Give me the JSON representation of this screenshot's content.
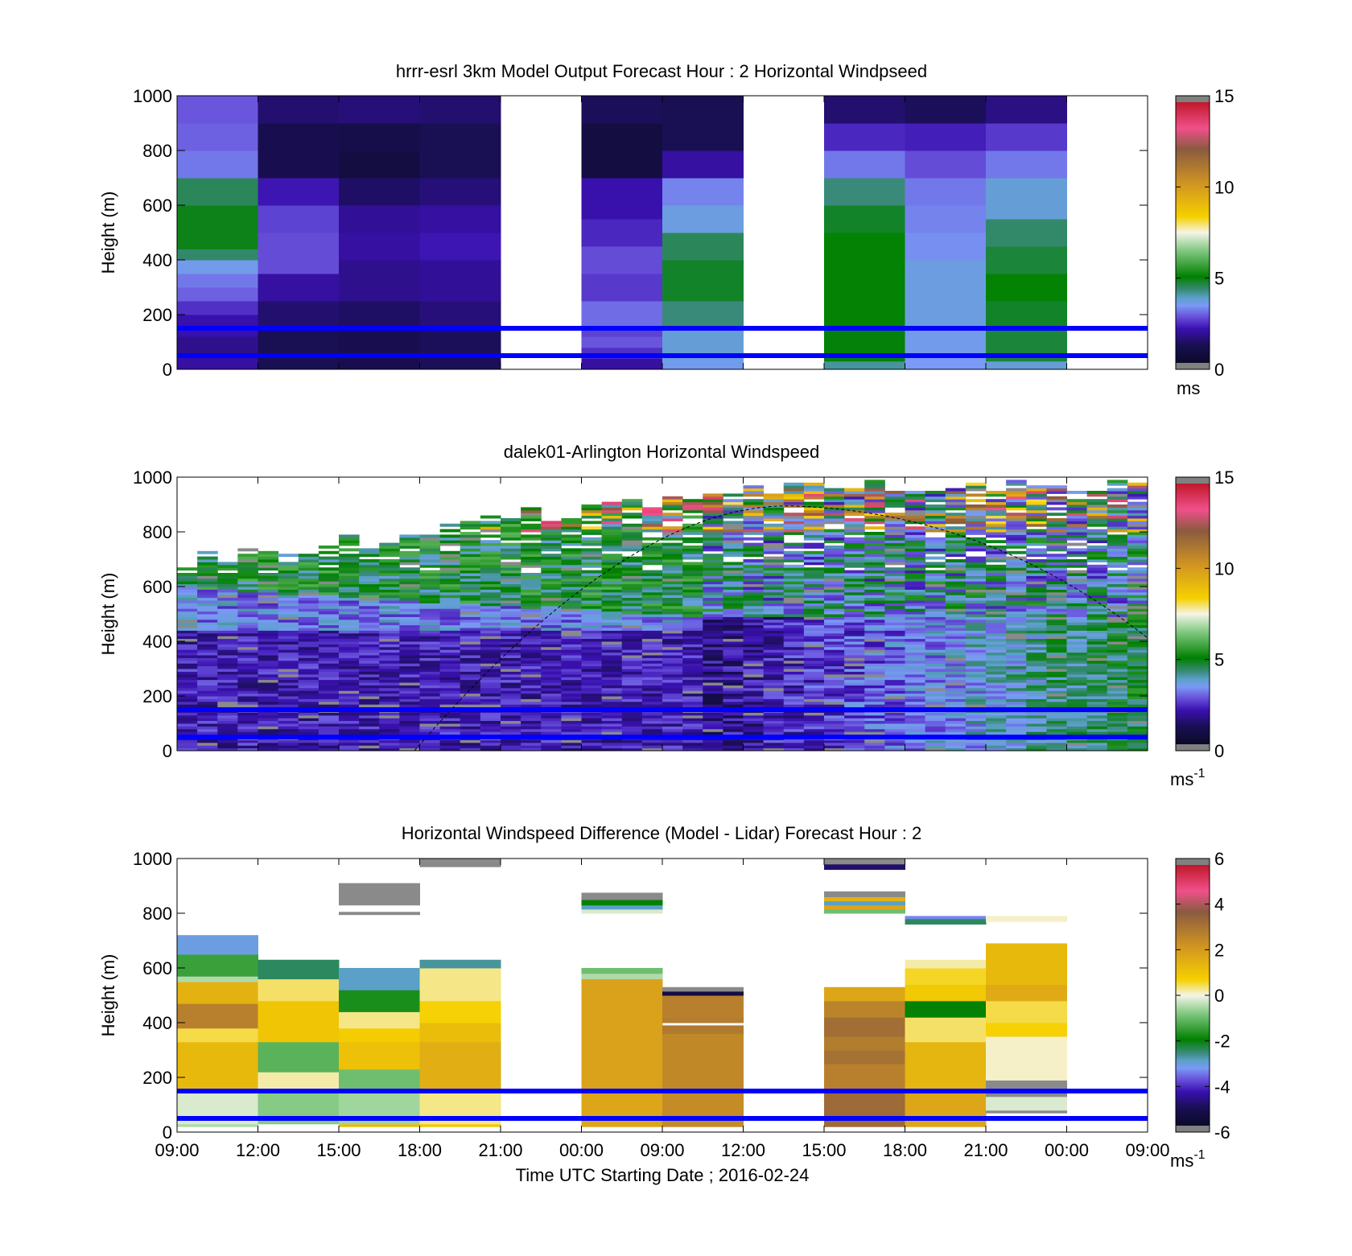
{
  "chart_data": [
    {
      "type": "heatmap",
      "title": "hrrr-esrl 3km Model Output   Forecast Hour : 2 Horizontal Windpseed",
      "ylabel": "Height (m)",
      "ylim": [
        0,
        1000
      ],
      "yticks": [
        "0",
        "200",
        "400",
        "600",
        "800",
        "1000"
      ],
      "colorbar": {
        "ticks": [
          "0",
          "5",
          "10",
          "15"
        ],
        "range": [
          0,
          15
        ],
        "unit": "ms"
      },
      "reference_lines_m": [
        150,
        50
      ],
      "reference_line_color": "#0000ff",
      "columns": [
        {
          "index": 0,
          "rows": [
            [
              0,
              60,
              1.8
            ],
            [
              60,
              120,
              1.6
            ],
            [
              120,
              200,
              1.9
            ],
            [
              200,
              250,
              2.3
            ],
            [
              250,
              300,
              2.8
            ],
            [
              300,
              350,
              3.0
            ],
            [
              350,
              400,
              3.4
            ],
            [
              400,
              440,
              4.3
            ],
            [
              440,
              500,
              4.8
            ],
            [
              500,
              600,
              4.8
            ],
            [
              600,
              700,
              4.4
            ],
            [
              700,
              800,
              3.0
            ],
            [
              800,
              900,
              2.8
            ],
            [
              900,
              1000,
              2.7
            ]
          ]
        },
        {
          "index": 1,
          "rows": [
            [
              0,
              150,
              1.0
            ],
            [
              150,
              250,
              1.3
            ],
            [
              250,
              350,
              1.8
            ],
            [
              350,
              500,
              2.6
            ],
            [
              500,
              600,
              2.5
            ],
            [
              600,
              700,
              2.0
            ],
            [
              700,
              900,
              0.9
            ],
            [
              900,
              1000,
              1.3
            ]
          ]
        },
        {
          "index": 2,
          "rows": [
            [
              0,
              150,
              0.9
            ],
            [
              150,
              250,
              1.2
            ],
            [
              250,
              400,
              1.6
            ],
            [
              400,
              500,
              1.8
            ],
            [
              500,
              600,
              1.7
            ],
            [
              600,
              700,
              1.2
            ],
            [
              700,
              800,
              0.6
            ],
            [
              800,
              900,
              0.8
            ],
            [
              900,
              1000,
              1.4
            ]
          ]
        },
        {
          "index": 3,
          "rows": [
            [
              0,
              150,
              1.1
            ],
            [
              150,
              250,
              1.4
            ],
            [
              250,
              400,
              1.7
            ],
            [
              400,
              500,
              2.0
            ],
            [
              500,
              600,
              1.8
            ],
            [
              600,
              700,
              1.4
            ],
            [
              700,
              900,
              1.0
            ],
            [
              900,
              1000,
              1.3
            ]
          ]
        },
        {
          "index": 5,
          "rows": [
            [
              0,
              40,
              1.8
            ],
            [
              40,
              80,
              2.3
            ],
            [
              80,
              120,
              2.7
            ],
            [
              120,
              160,
              2.5
            ],
            [
              160,
              250,
              2.9
            ],
            [
              250,
              350,
              2.4
            ],
            [
              350,
              450,
              2.6
            ],
            [
              450,
              550,
              2.2
            ],
            [
              550,
              700,
              1.9
            ],
            [
              700,
              900,
              0.6
            ],
            [
              900,
              1000,
              1.1
            ]
          ]
        },
        {
          "index": 6,
          "rows": [
            [
              0,
              40,
              3.4
            ],
            [
              40,
              150,
              3.6
            ],
            [
              150,
              250,
              4.2
            ],
            [
              250,
              400,
              4.7
            ],
            [
              400,
              500,
              4.4
            ],
            [
              500,
              600,
              3.5
            ],
            [
              600,
              700,
              3.1
            ],
            [
              700,
              800,
              1.8
            ],
            [
              800,
              1000,
              1.0
            ]
          ]
        },
        {
          "index": 8,
          "rows": [
            [
              0,
              30,
              4.0
            ],
            [
              30,
              150,
              4.9
            ],
            [
              150,
              500,
              5.0
            ],
            [
              500,
              600,
              4.7
            ],
            [
              600,
              700,
              4.2
            ],
            [
              700,
              800,
              3.0
            ],
            [
              800,
              900,
              2.2
            ],
            [
              900,
              1000,
              1.3
            ]
          ]
        },
        {
          "index": 9,
          "rows": [
            [
              0,
              50,
              3.3
            ],
            [
              50,
              150,
              3.4
            ],
            [
              150,
              400,
              3.5
            ],
            [
              400,
              500,
              3.2
            ],
            [
              500,
              600,
              3.1
            ],
            [
              600,
              700,
              3.0
            ],
            [
              700,
              800,
              2.6
            ],
            [
              800,
              900,
              2.1
            ],
            [
              900,
              1000,
              1.1
            ]
          ]
        },
        {
          "index": 10,
          "rows": [
            [
              0,
              30,
              3.6
            ],
            [
              30,
              150,
              4.6
            ],
            [
              150,
              250,
              4.7
            ],
            [
              250,
              350,
              5.0
            ],
            [
              350,
              450,
              4.6
            ],
            [
              450,
              550,
              4.3
            ],
            [
              550,
              700,
              3.6
            ],
            [
              700,
              800,
              3.0
            ],
            [
              800,
              900,
              2.4
            ],
            [
              900,
              1000,
              1.5
            ]
          ]
        }
      ]
    },
    {
      "type": "heatmap",
      "title": "dalek01-Arlington  Horizontal Windspeed",
      "ylabel": "Height (m)",
      "ylim": [
        0,
        1000
      ],
      "yticks": [
        "0",
        "200",
        "400",
        "600",
        "800",
        "1000"
      ],
      "colorbar": {
        "ticks": [
          "0",
          "5",
          "10",
          "15"
        ],
        "range": [
          0,
          15
        ],
        "unit": "ms",
        "unit_sup": "-1"
      },
      "reference_lines_m": [
        150,
        50
      ],
      "reference_line_color": "#0000ff",
      "note": "dense lidar retrievals; approx. 48 time columns over 36 h, 10 m range gates",
      "overlay_curve": "thin dashed black arc"
    },
    {
      "type": "heatmap",
      "title": "Horizontal Windspeed Difference (Model - Lidar) Forecast Hour : 2",
      "ylabel": "Height (m)",
      "xlabel": "Time UTC  Starting Date ; 2016-02-24",
      "xticks": [
        "09:00",
        "12:00",
        "15:00",
        "18:00",
        "21:00",
        "00:00",
        "09:00",
        "12:00",
        "15:00",
        "18:00",
        "21:00",
        "00:00",
        "09:00"
      ],
      "ylim": [
        0,
        1000
      ],
      "yticks": [
        "0",
        "200",
        "400",
        "600",
        "800",
        "1000"
      ],
      "colorbar": {
        "ticks": [
          "-6",
          "-4",
          "-2",
          "0",
          "2",
          "4",
          "6"
        ],
        "range": [
          -6,
          6
        ],
        "unit": "ms",
        "unit_sup": "-1"
      },
      "reference_lines_m": [
        150,
        50
      ],
      "reference_line_color": "#0000ff",
      "columns": [
        {
          "index": 0,
          "rows": [
            [
              20,
              30,
              -0.5
            ],
            [
              30,
              160,
              -0.2
            ],
            [
              160,
              330,
              1.3
            ],
            [
              330,
              380,
              0.5
            ],
            [
              380,
              470,
              2.8
            ],
            [
              470,
              550,
              1.5
            ],
            [
              550,
              570,
              -0.5
            ],
            [
              570,
              650,
              -1.5
            ],
            [
              650,
              720,
              -3.2
            ]
          ]
        },
        {
          "index": 1,
          "rows": [
            [
              30,
              160,
              -0.8
            ],
            [
              160,
              220,
              0.2
            ],
            [
              220,
              330,
              -1.2
            ],
            [
              330,
              480,
              1.0
            ],
            [
              480,
              560,
              0.4
            ],
            [
              560,
              630,
              -2.5
            ]
          ]
        },
        {
          "index": 2,
          "rows": [
            [
              20,
              30,
              1.2
            ],
            [
              30,
              160,
              -0.6
            ],
            [
              160,
              230,
              -1.0
            ],
            [
              230,
              330,
              1.1
            ],
            [
              330,
              380,
              0.8
            ],
            [
              380,
              440,
              0.3
            ],
            [
              440,
              520,
              -1.8
            ],
            [
              520,
              600,
              -3.0
            ],
            [
              795,
              805,
              6.0
            ],
            [
              830,
              910,
              6.0
            ]
          ]
        },
        {
          "index": 3,
          "rows": [
            [
              20,
              30,
              0.9
            ],
            [
              30,
              160,
              0.3
            ],
            [
              160,
              330,
              1.6
            ],
            [
              330,
              400,
              1.2
            ],
            [
              400,
              480,
              0.7
            ],
            [
              480,
              600,
              0.3
            ],
            [
              600,
              630,
              -2.8
            ],
            [
              970,
              1000,
              6.0
            ]
          ]
        },
        {
          "index": 5,
          "rows": [
            [
              20,
              160,
              1.8
            ],
            [
              160,
              560,
              1.9
            ],
            [
              560,
              580,
              -0.5
            ],
            [
              580,
              600,
              -1.0
            ],
            [
              800,
              815,
              -0.2
            ],
            [
              815,
              830,
              -3.0
            ],
            [
              830,
              850,
              -2.0
            ],
            [
              850,
              875,
              6.0
            ]
          ]
        },
        {
          "index": 6,
          "rows": [
            [
              20,
              160,
              2.5
            ],
            [
              160,
              360,
              2.6
            ],
            [
              360,
              390,
              3.0
            ],
            [
              400,
              420,
              2.9
            ],
            [
              420,
              500,
              2.8
            ],
            [
              500,
              515,
              -5.5
            ],
            [
              515,
              530,
              6.0
            ]
          ]
        },
        {
          "index": 8,
          "rows": [
            [
              20,
              160,
              3.4
            ],
            [
              160,
              250,
              2.8
            ],
            [
              250,
              300,
              3.2
            ],
            [
              300,
              350,
              2.9
            ],
            [
              350,
              420,
              3.3
            ],
            [
              420,
              480,
              2.7
            ],
            [
              480,
              530,
              1.8
            ],
            [
              800,
              815,
              -1.0
            ],
            [
              815,
              830,
              1.8
            ],
            [
              830,
              845,
              -3.0
            ],
            [
              845,
              860,
              1.5
            ],
            [
              860,
              880,
              6.0
            ],
            [
              960,
              980,
              -5.0
            ],
            [
              980,
              1000,
              6.0
            ]
          ]
        },
        {
          "index": 9,
          "rows": [
            [
              20,
              160,
              1.8
            ],
            [
              160,
              330,
              1.4
            ],
            [
              330,
              420,
              0.4
            ],
            [
              420,
              480,
              -2.0
            ],
            [
              480,
              540,
              0.9
            ],
            [
              540,
              600,
              0.6
            ],
            [
              600,
              630,
              0.2
            ],
            [
              760,
              780,
              -2.5
            ],
            [
              780,
              790,
              -3.5
            ]
          ]
        },
        {
          "index": 10,
          "rows": [
            [
              70,
              80,
              6.0
            ],
            [
              80,
              130,
              -0.2
            ],
            [
              130,
              160,
              6.0
            ],
            [
              160,
              190,
              6.0
            ],
            [
              190,
              350,
              0.1
            ],
            [
              350,
              400,
              0.7
            ],
            [
              400,
              480,
              0.5
            ],
            [
              480,
              540,
              1.7
            ],
            [
              540,
              690,
              1.3
            ],
            [
              770,
              790,
              0.1
            ]
          ]
        }
      ]
    }
  ]
}
